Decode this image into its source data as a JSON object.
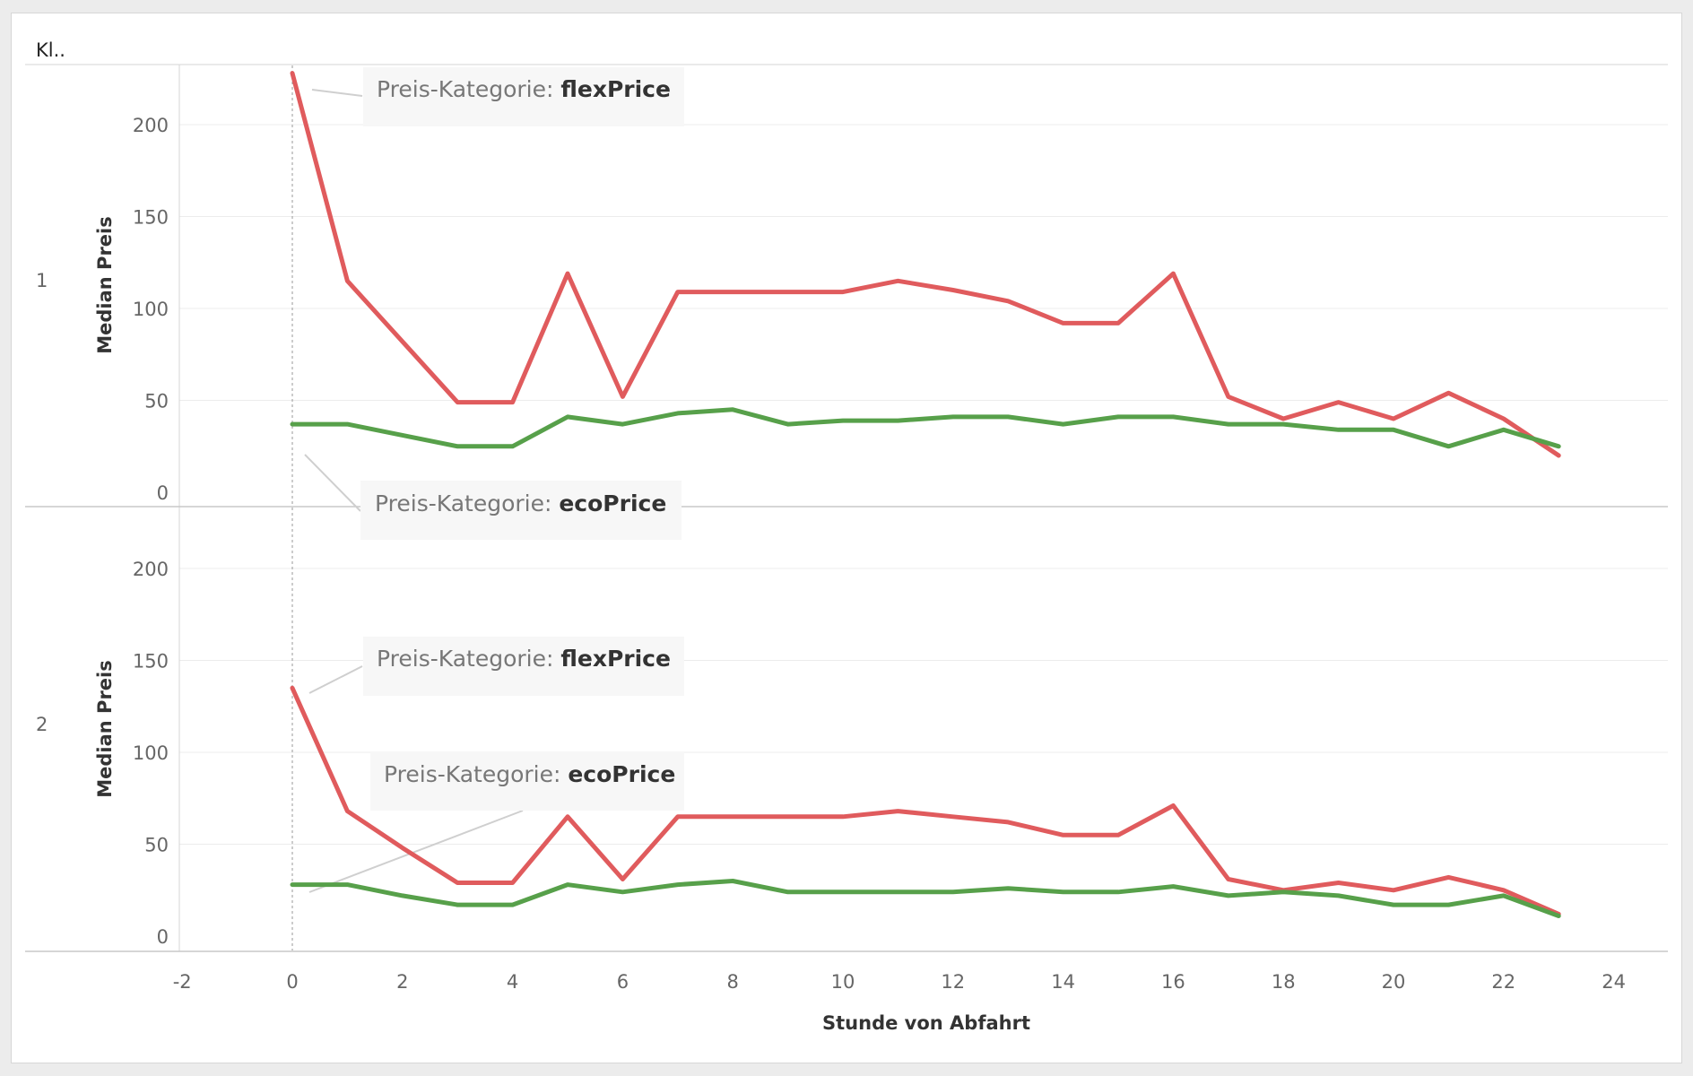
{
  "header": {
    "column_label": "Kl.."
  },
  "x_axis": {
    "title": "Stunde von Abfahrt",
    "ticks": [
      -2,
      0,
      2,
      4,
      6,
      8,
      10,
      12,
      14,
      16,
      18,
      20,
      22,
      24
    ]
  },
  "colors": {
    "flexPrice": "#e05b5d",
    "ecoPrice": "#57a04a",
    "grid": "#ececec",
    "axis": "#c8c8c8"
  },
  "chart_data": [
    {
      "type": "line",
      "row_label": "1",
      "ylabel": "Median Preis",
      "xlim": [
        -2,
        24
      ],
      "ylim": [
        0,
        230
      ],
      "yticks": [
        0,
        50,
        100,
        150,
        200
      ],
      "x": [
        0,
        1,
        2,
        3,
        4,
        5,
        6,
        7,
        8,
        9,
        10,
        11,
        12,
        13,
        14,
        15,
        16,
        17,
        18,
        19,
        20,
        21,
        22,
        23
      ],
      "series": [
        {
          "name": "flexPrice",
          "values": [
            228,
            115,
            82,
            49,
            49,
            119,
            52,
            109,
            109,
            109,
            109,
            115,
            110,
            104,
            92,
            92,
            119,
            52,
            40,
            49,
            40,
            54,
            40,
            20
          ]
        },
        {
          "name": "ecoPrice",
          "values": [
            37,
            37,
            31,
            25,
            25,
            41,
            37,
            43,
            45,
            37,
            39,
            39,
            41,
            41,
            37,
            41,
            41,
            37,
            37,
            34,
            34,
            25,
            34,
            25
          ]
        }
      ],
      "annotations": [
        {
          "prefix": "Preis-Kategorie:",
          "value": "flexPrice"
        },
        {
          "prefix": "Preis-Kategorie:",
          "value": "ecoPrice"
        }
      ]
    },
    {
      "type": "line",
      "row_label": "2",
      "ylabel": "Median Preis",
      "xlim": [
        -2,
        24
      ],
      "ylim": [
        0,
        230
      ],
      "yticks": [
        0,
        50,
        100,
        150,
        200
      ],
      "x": [
        0,
        1,
        2,
        3,
        4,
        5,
        6,
        7,
        8,
        9,
        10,
        11,
        12,
        13,
        14,
        15,
        16,
        17,
        18,
        19,
        20,
        21,
        22,
        23
      ],
      "series": [
        {
          "name": "flexPrice",
          "values": [
            135,
            68,
            48,
            29,
            29,
            65,
            31,
            65,
            65,
            65,
            65,
            68,
            65,
            62,
            55,
            55,
            71,
            31,
            25,
            29,
            25,
            32,
            25,
            12
          ]
        },
        {
          "name": "ecoPrice",
          "values": [
            28,
            28,
            22,
            17,
            17,
            28,
            24,
            28,
            30,
            24,
            24,
            24,
            24,
            26,
            24,
            24,
            27,
            22,
            24,
            22,
            17,
            17,
            22,
            11
          ]
        }
      ],
      "annotations": [
        {
          "prefix": "Preis-Kategorie:",
          "value": "flexPrice"
        },
        {
          "prefix": "Preis-Kategorie:",
          "value": "ecoPrice"
        }
      ]
    }
  ]
}
